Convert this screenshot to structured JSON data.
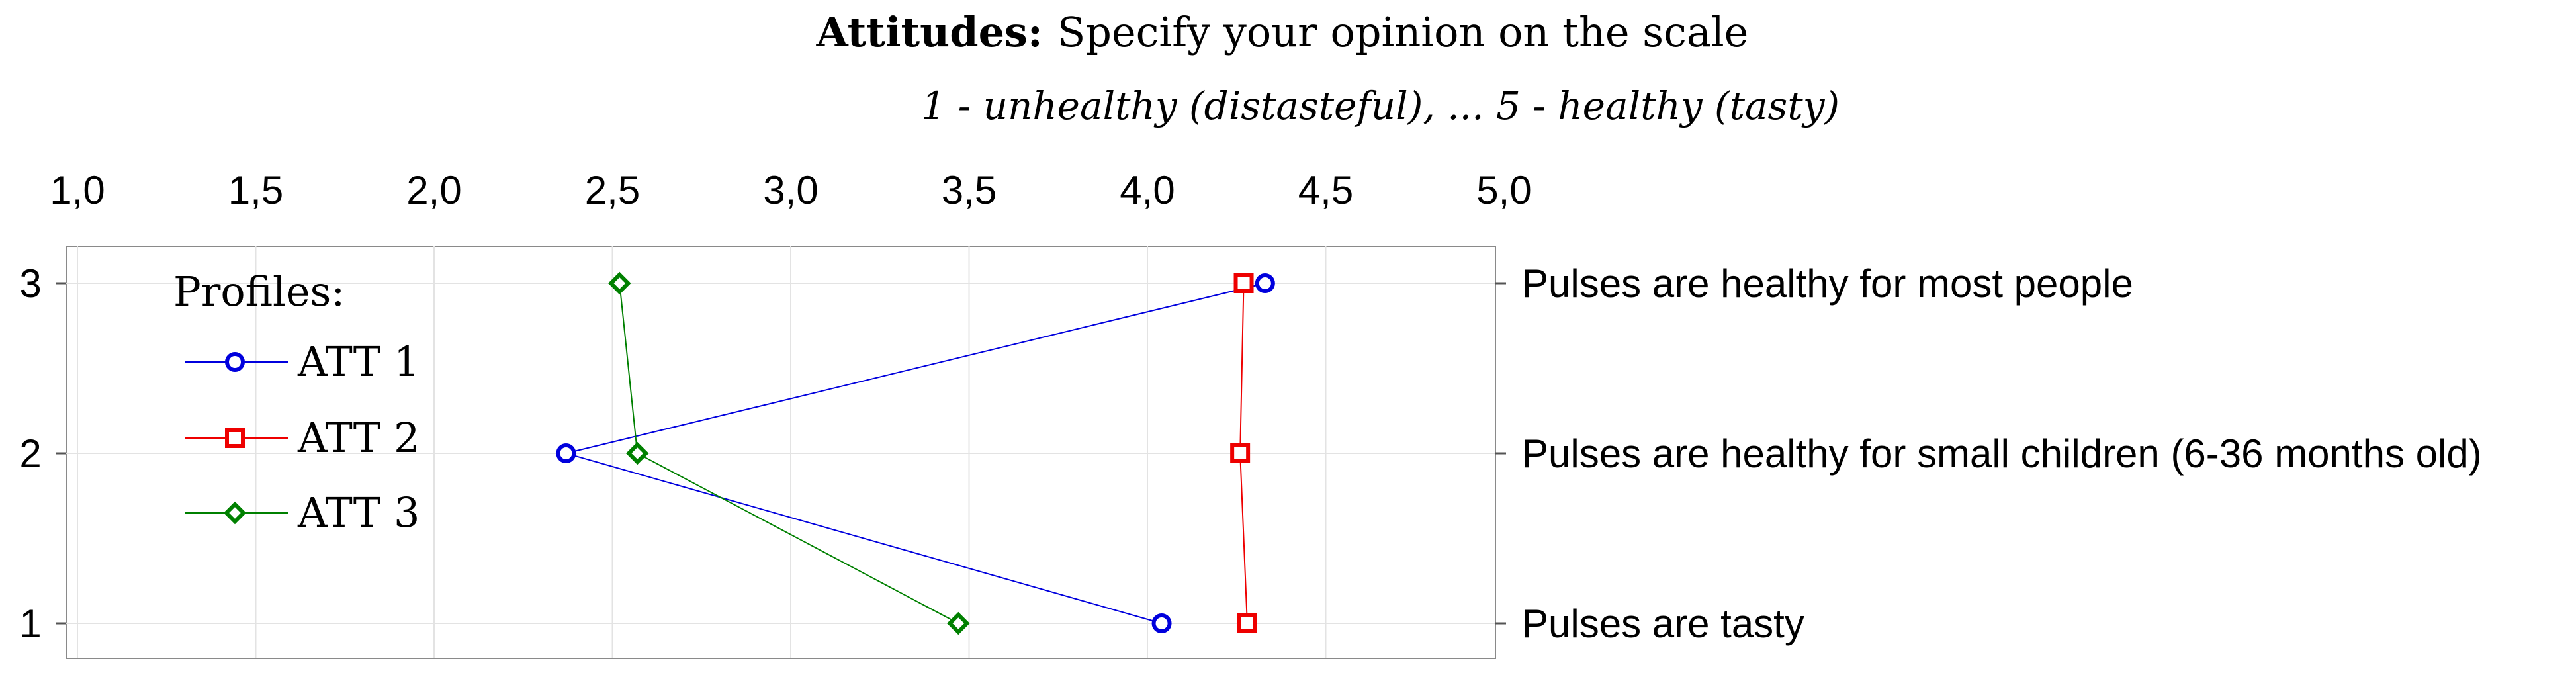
{
  "chart_data": {
    "type": "line",
    "title_bold": "Attitudes:",
    "title_rest": "Specify your opinion on the scale",
    "subtitle": "1 - unhealthy (distasteful), ... 5 - healthy (tasty)",
    "x_ticks": [
      "1,0",
      "1,5",
      "2,0",
      "2,5",
      "3,0",
      "3,5",
      "4,0",
      "4,5",
      "5,0"
    ],
    "xlim": [
      1.0,
      5.0
    ],
    "y_ticks": [
      "3",
      "2",
      "1"
    ],
    "ylim": [
      0.8,
      3.2
    ],
    "grid": true,
    "items": [
      {
        "y": 3,
        "label": "Pulses are healthy for most people"
      },
      {
        "y": 2,
        "label": "Pulses are healthy for small children (6-36 months old)"
      },
      {
        "y": 1,
        "label": "Pulses are tasty"
      }
    ],
    "legend_title": "Profiles:",
    "legend_position": "top-left",
    "series": [
      {
        "name": "ATT 1",
        "color": "#0000dd",
        "marker": "circle",
        "values": [
          4.33,
          2.37,
          4.04
        ]
      },
      {
        "name": "ATT 2",
        "color": "#ee0000",
        "marker": "square",
        "values": [
          4.27,
          4.26,
          4.28
        ]
      },
      {
        "name": "ATT 3",
        "color": "#008000",
        "marker": "diamond",
        "values": [
          2.52,
          2.57,
          3.47
        ]
      }
    ]
  }
}
